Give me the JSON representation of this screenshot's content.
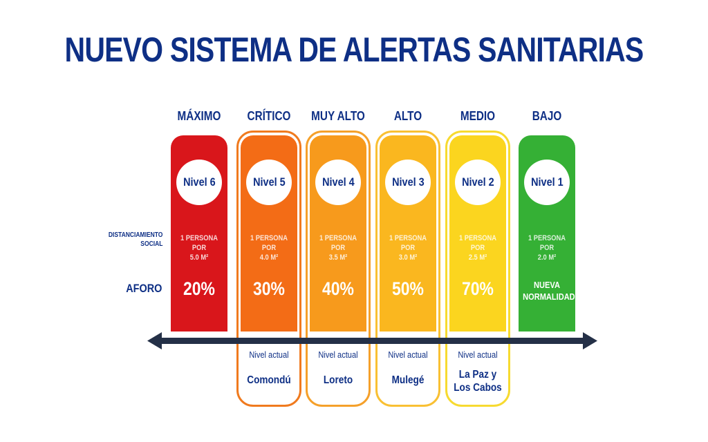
{
  "title": "NUEVO SISTEMA DE ALERTAS SANITARIAS",
  "row_labels": {
    "distanciamiento_line1": "DISTANCIAMIENTO",
    "distanciamiento_line2": "SOCIAL",
    "aforo": "AFORO"
  },
  "levels": [
    {
      "name": "MÁXIMO",
      "badge": "Nivel 6",
      "distance_line1": "1 PERSONA POR",
      "distance_line2": "5.0 M²",
      "aforo": "20%",
      "color": "#d9161b"
    },
    {
      "name": "CRÍTICO",
      "badge": "Nivel 5",
      "distance_line1": "1 PERSONA POR",
      "distance_line2": "4.0 M²",
      "aforo": "30%",
      "color": "#f36c16",
      "outline_color": "#f07a1e",
      "current_label": "Nivel actual",
      "region_line1": "Comondú"
    },
    {
      "name": "MUY ALTO",
      "badge": "Nivel 4",
      "distance_line1": "1 PERSONA POR",
      "distance_line2": "3.5 M²",
      "aforo": "40%",
      "color": "#f79a1c",
      "outline_color": "#f5a02a",
      "current_label": "Nivel actual",
      "region_line1": "Loreto"
    },
    {
      "name": "ALTO",
      "badge": "Nivel 3",
      "distance_line1": "1 PERSONA POR",
      "distance_line2": "3.0 M²",
      "aforo": "50%",
      "color": "#fab71f",
      "outline_color": "#f9c033",
      "current_label": "Nivel actual",
      "region_line1": "Mulegé"
    },
    {
      "name": "MEDIO",
      "badge": "Nivel 2",
      "distance_line1": "1 PERSONA POR",
      "distance_line2": "2.5 M²",
      "aforo": "70%",
      "color": "#fbd51f",
      "outline_color": "#f7da30",
      "current_label": "Nivel actual",
      "region_line1": "La Paz y",
      "region_line2": "Los Cabos"
    },
    {
      "name": "BAJO",
      "badge": "Nivel 1",
      "distance_line1": "1 PERSONA POR",
      "distance_line2": "2.0 M²",
      "aforo_line1": "NUEVA",
      "aforo_line2": "NORMALIDAD",
      "color": "#35b035"
    }
  ],
  "colors": {
    "navy": "#0e2f85",
    "arrow": "#243047"
  }
}
